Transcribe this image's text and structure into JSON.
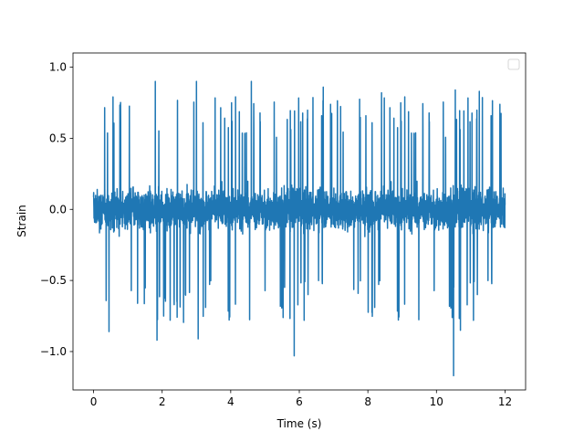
{
  "chart_data": {
    "type": "line",
    "title": "",
    "xlabel": "Time (s)",
    "ylabel": "Strain",
    "xlim": [
      -0.6,
      12.6
    ],
    "ylim": [
      -1.27,
      1.1
    ],
    "x_ticks": [
      0,
      2,
      4,
      6,
      8,
      10,
      12
    ],
    "x_tick_labels": [
      "0",
      "2",
      "4",
      "6",
      "8",
      "10",
      "12"
    ],
    "y_ticks": [
      -1.0,
      -0.5,
      0.0,
      0.5,
      1.0
    ],
    "y_tick_labels": [
      "−1.0",
      "−0.5",
      "0.0",
      "0.5",
      "1.0"
    ],
    "grid": false,
    "legend": {
      "placement": "top-right",
      "entries": []
    },
    "series": [
      {
        "color": "#1f77b4",
        "x_range": [
          0,
          12
        ],
        "typical_band": [
          -0.5,
          0.5
        ],
        "notable_points": [
          {
            "x": 0.45,
            "y": -0.86
          },
          {
            "x": 1.8,
            "y": 0.9
          },
          {
            "x": 1.85,
            "y": -0.92
          },
          {
            "x": 3.0,
            "y": 0.9
          },
          {
            "x": 3.05,
            "y": -0.91
          },
          {
            "x": 4.6,
            "y": 0.9
          },
          {
            "x": 5.85,
            "y": -1.03
          },
          {
            "x": 6.7,
            "y": 0.86
          },
          {
            "x": 8.4,
            "y": 0.82
          },
          {
            "x": 10.5,
            "y": -1.17
          },
          {
            "x": 10.55,
            "y": 0.84
          },
          {
            "x": 10.7,
            "y": -0.85
          },
          {
            "x": 11.25,
            "y": 0.83
          }
        ]
      }
    ]
  }
}
